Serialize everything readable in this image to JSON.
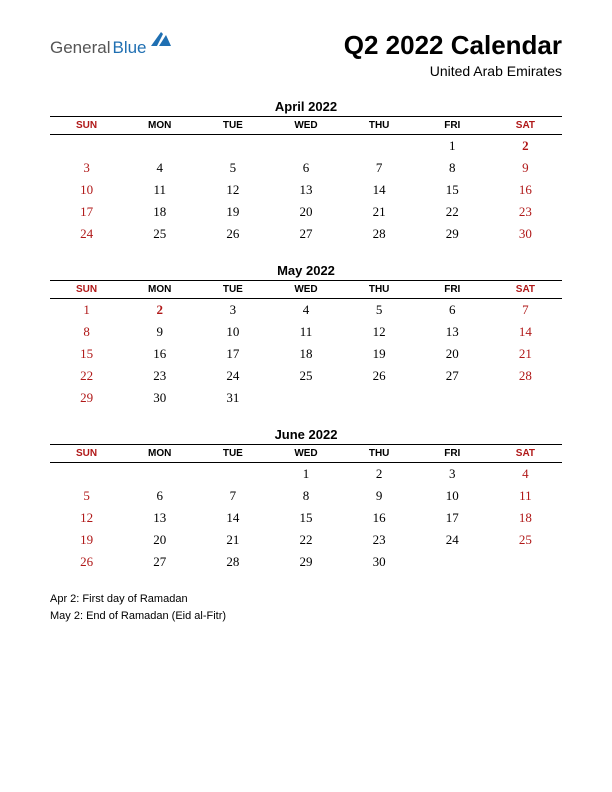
{
  "logo": {
    "part1": "General",
    "part2": "Blue",
    "icon_color": "#1f6fb2"
  },
  "title": "Q2 2022 Calendar",
  "subtitle": "United Arab Emirates",
  "colors": {
    "weekend": "#b01818",
    "text": "#000000",
    "background": "#ffffff",
    "rule": "#000000"
  },
  "day_headers": [
    "SUN",
    "MON",
    "TUE",
    "WED",
    "THU",
    "FRI",
    "SAT"
  ],
  "weekend_columns": [
    0,
    6
  ],
  "months": [
    {
      "title": "April 2022",
      "rows": [
        [
          null,
          null,
          null,
          null,
          null,
          {
            "d": 1
          },
          {
            "d": 2,
            "holiday": true
          }
        ],
        [
          {
            "d": 3
          },
          {
            "d": 4
          },
          {
            "d": 5
          },
          {
            "d": 6
          },
          {
            "d": 7
          },
          {
            "d": 8
          },
          {
            "d": 9
          }
        ],
        [
          {
            "d": 10
          },
          {
            "d": 11
          },
          {
            "d": 12
          },
          {
            "d": 13
          },
          {
            "d": 14
          },
          {
            "d": 15
          },
          {
            "d": 16
          }
        ],
        [
          {
            "d": 17
          },
          {
            "d": 18
          },
          {
            "d": 19
          },
          {
            "d": 20
          },
          {
            "d": 21
          },
          {
            "d": 22
          },
          {
            "d": 23
          }
        ],
        [
          {
            "d": 24
          },
          {
            "d": 25
          },
          {
            "d": 26
          },
          {
            "d": 27
          },
          {
            "d": 28
          },
          {
            "d": 29
          },
          {
            "d": 30
          }
        ]
      ]
    },
    {
      "title": "May 2022",
      "rows": [
        [
          {
            "d": 1
          },
          {
            "d": 2,
            "holiday": true
          },
          {
            "d": 3
          },
          {
            "d": 4
          },
          {
            "d": 5
          },
          {
            "d": 6
          },
          {
            "d": 7
          }
        ],
        [
          {
            "d": 8
          },
          {
            "d": 9
          },
          {
            "d": 10
          },
          {
            "d": 11
          },
          {
            "d": 12
          },
          {
            "d": 13
          },
          {
            "d": 14
          }
        ],
        [
          {
            "d": 15
          },
          {
            "d": 16
          },
          {
            "d": 17
          },
          {
            "d": 18
          },
          {
            "d": 19
          },
          {
            "d": 20
          },
          {
            "d": 21
          }
        ],
        [
          {
            "d": 22
          },
          {
            "d": 23
          },
          {
            "d": 24
          },
          {
            "d": 25
          },
          {
            "d": 26
          },
          {
            "d": 27
          },
          {
            "d": 28
          }
        ],
        [
          {
            "d": 29
          },
          {
            "d": 30
          },
          {
            "d": 31
          },
          null,
          null,
          null,
          null
        ]
      ]
    },
    {
      "title": "June 2022",
      "rows": [
        [
          null,
          null,
          null,
          {
            "d": 1
          },
          {
            "d": 2
          },
          {
            "d": 3
          },
          {
            "d": 4
          }
        ],
        [
          {
            "d": 5
          },
          {
            "d": 6
          },
          {
            "d": 7
          },
          {
            "d": 8
          },
          {
            "d": 9
          },
          {
            "d": 10
          },
          {
            "d": 11
          }
        ],
        [
          {
            "d": 12
          },
          {
            "d": 13
          },
          {
            "d": 14
          },
          {
            "d": 15
          },
          {
            "d": 16
          },
          {
            "d": 17
          },
          {
            "d": 18
          }
        ],
        [
          {
            "d": 19
          },
          {
            "d": 20
          },
          {
            "d": 21
          },
          {
            "d": 22
          },
          {
            "d": 23
          },
          {
            "d": 24
          },
          {
            "d": 25
          }
        ],
        [
          {
            "d": 26
          },
          {
            "d": 27
          },
          {
            "d": 28
          },
          {
            "d": 29
          },
          {
            "d": 30
          },
          null,
          null
        ]
      ]
    }
  ],
  "notes": [
    "Apr 2: First day of Ramadan",
    "May 2: End of Ramadan (Eid al-Fitr)"
  ]
}
